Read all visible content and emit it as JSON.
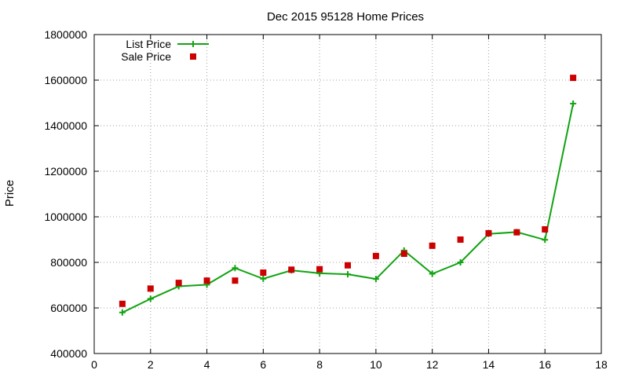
{
  "chart_data": {
    "type": "line",
    "title": "Dec 2015 95128 Home Prices",
    "xlabel": "",
    "ylabel": "Price",
    "xlim": [
      0,
      18
    ],
    "ylim": [
      400000,
      1800000
    ],
    "x_ticks": [
      0,
      2,
      4,
      6,
      8,
      10,
      12,
      14,
      16,
      18
    ],
    "y_ticks": [
      400000,
      600000,
      800000,
      1000000,
      1200000,
      1400000,
      1600000,
      1800000
    ],
    "x_tick_labels": [
      "0",
      "2",
      "4",
      "6",
      "8",
      "10",
      "12",
      "14",
      "16",
      "18"
    ],
    "y_tick_labels": [
      "400000",
      "600000",
      "800000",
      "1000000",
      "1200000",
      "1400000",
      "1600000",
      "1800000"
    ],
    "grid": true,
    "legend_position": "top-left",
    "x": [
      1,
      2,
      3,
      4,
      5,
      6,
      7,
      8,
      9,
      10,
      11,
      12,
      13,
      14,
      15,
      16,
      17
    ],
    "series": [
      {
        "name": "List Price",
        "style": "line-with-plus-markers",
        "color": "#11a311",
        "values": [
          580000,
          640000,
          695000,
          702000,
          775000,
          728000,
          765000,
          752000,
          748000,
          727000,
          852000,
          750000,
          800000,
          925000,
          933000,
          899000,
          1497000
        ]
      },
      {
        "name": "Sale Price",
        "style": "square-markers",
        "color": "#cc0000",
        "values": [
          618000,
          685000,
          710000,
          720000,
          720000,
          755000,
          768000,
          770000,
          787000,
          828000,
          838000,
          873000,
          900000,
          928000,
          932000,
          945000,
          1610000
        ]
      }
    ]
  }
}
